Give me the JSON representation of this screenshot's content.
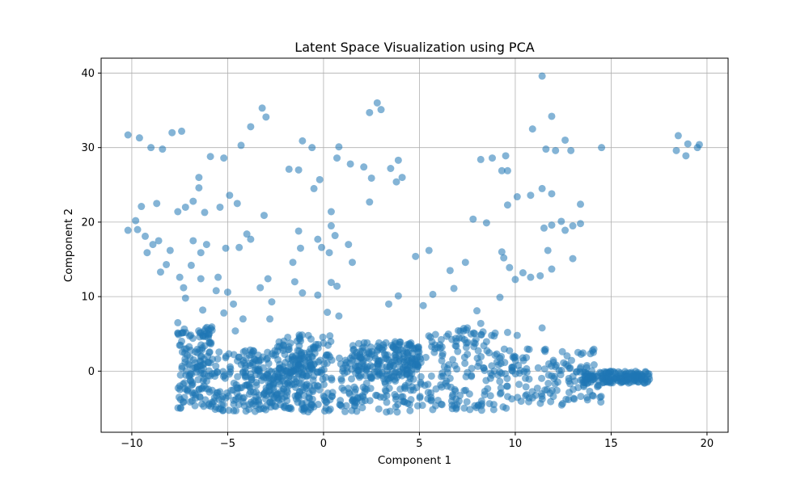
{
  "chart_data": {
    "type": "scatter",
    "title": "Latent Space Visualization using PCA",
    "xlabel": "Component 1",
    "ylabel": "Component 2",
    "xlim": [
      -11.6,
      21.1
    ],
    "ylim": [
      -8.2,
      42.0
    ],
    "xticks": [
      -10,
      -5,
      0,
      5,
      10,
      15,
      20
    ],
    "yticks": [
      0,
      10,
      20,
      30,
      40
    ],
    "grid": true,
    "legend": "none",
    "marker_color": "#1f77b4",
    "marker_alpha": 0.55,
    "series": [
      {
        "points": [
          [
            -10.2,
            31.7
          ],
          [
            -9.6,
            31.3
          ],
          [
            -9.0,
            30.0
          ],
          [
            -8.4,
            29.8
          ],
          [
            -7.9,
            32.0
          ],
          [
            -7.4,
            32.2
          ],
          [
            -5.2,
            28.6
          ],
          [
            -5.9,
            28.8
          ],
          [
            -3.8,
            32.8
          ],
          [
            -3.2,
            35.3
          ],
          [
            -3.0,
            34.1
          ],
          [
            2.8,
            36.0
          ],
          [
            3.0,
            35.1
          ],
          [
            2.4,
            34.7
          ],
          [
            11.4,
            39.6
          ],
          [
            11.9,
            34.2
          ],
          [
            10.9,
            32.5
          ],
          [
            11.6,
            29.8
          ],
          [
            12.1,
            29.6
          ],
          [
            12.9,
            29.6
          ],
          [
            14.5,
            30.0
          ],
          [
            12.6,
            31.0
          ],
          [
            18.5,
            31.6
          ],
          [
            18.4,
            29.6
          ],
          [
            19.0,
            30.5
          ],
          [
            19.5,
            30.0
          ],
          [
            18.9,
            28.9
          ],
          [
            19.6,
            30.4
          ],
          [
            -4.3,
            30.3
          ],
          [
            -1.1,
            30.9
          ],
          [
            -0.6,
            30.0
          ],
          [
            0.8,
            30.1
          ],
          [
            0.7,
            28.6
          ],
          [
            1.4,
            27.8
          ],
          [
            2.1,
            27.4
          ],
          [
            3.9,
            28.3
          ],
          [
            8.2,
            28.4
          ],
          [
            8.8,
            28.6
          ],
          [
            9.5,
            28.9
          ],
          [
            9.3,
            26.9
          ],
          [
            9.6,
            26.9
          ],
          [
            3.5,
            27.2
          ],
          [
            3.8,
            25.4
          ],
          [
            4.1,
            26.0
          ],
          [
            2.5,
            25.9
          ],
          [
            -1.8,
            27.1
          ],
          [
            -1.3,
            27.0
          ],
          [
            -0.2,
            25.7
          ],
          [
            -0.5,
            24.5
          ],
          [
            -6.5,
            26.0
          ],
          [
            -6.5,
            24.6
          ],
          [
            -7.2,
            22.0
          ],
          [
            -6.8,
            22.8
          ],
          [
            -7.6,
            21.4
          ],
          [
            -8.7,
            22.5
          ],
          [
            -9.5,
            22.1
          ],
          [
            -9.8,
            20.2
          ],
          [
            -10.2,
            18.9
          ],
          [
            -9.7,
            19.0
          ],
          [
            -9.3,
            18.1
          ],
          [
            -8.9,
            17.0
          ],
          [
            -8.6,
            17.5
          ],
          [
            -9.2,
            15.9
          ],
          [
            -8.0,
            16.2
          ],
          [
            -6.2,
            21.3
          ],
          [
            -6.8,
            17.5
          ],
          [
            -6.4,
            15.9
          ],
          [
            -6.1,
            17.0
          ],
          [
            -5.4,
            22.0
          ],
          [
            -4.9,
            23.6
          ],
          [
            -4.5,
            22.5
          ],
          [
            -4.0,
            18.4
          ],
          [
            -3.8,
            17.7
          ],
          [
            -4.4,
            16.6
          ],
          [
            -5.1,
            16.5
          ],
          [
            -3.1,
            20.9
          ],
          [
            -1.3,
            18.8
          ],
          [
            -1.2,
            16.5
          ],
          [
            -1.6,
            14.6
          ],
          [
            -0.3,
            17.7
          ],
          [
            0.4,
            19.5
          ],
          [
            0.4,
            21.4
          ],
          [
            0.6,
            18.2
          ],
          [
            -0.1,
            16.6
          ],
          [
            0.3,
            15.9
          ],
          [
            1.3,
            17.0
          ],
          [
            1.5,
            14.6
          ],
          [
            2.4,
            22.7
          ],
          [
            -8.5,
            13.3
          ],
          [
            -8.2,
            14.3
          ],
          [
            -7.5,
            12.6
          ],
          [
            -6.9,
            14.2
          ],
          [
            -6.4,
            12.4
          ],
          [
            -5.5,
            12.6
          ],
          [
            -5.6,
            10.8
          ],
          [
            -5.0,
            10.6
          ],
          [
            -3.3,
            11.2
          ],
          [
            -2.9,
            12.4
          ],
          [
            -2.7,
            9.3
          ],
          [
            -1.5,
            12.0
          ],
          [
            -1.1,
            10.5
          ],
          [
            -0.3,
            10.2
          ],
          [
            0.4,
            11.9
          ],
          [
            0.7,
            11.4
          ],
          [
            -7.3,
            11.2
          ],
          [
            -7.2,
            9.8
          ],
          [
            -6.3,
            8.2
          ],
          [
            -5.2,
            7.8
          ],
          [
            -4.7,
            9.0
          ],
          [
            -4.2,
            7.0
          ],
          [
            -7.6,
            6.5
          ],
          [
            -6.0,
            5.5
          ],
          [
            -4.6,
            5.4
          ],
          [
            -2.8,
            7.0
          ],
          [
            0.2,
            7.9
          ],
          [
            0.8,
            7.4
          ],
          [
            3.4,
            9.0
          ],
          [
            5.2,
            8.8
          ],
          [
            5.7,
            10.3
          ],
          [
            3.9,
            10.1
          ],
          [
            4.8,
            15.4
          ],
          [
            5.5,
            16.2
          ],
          [
            6.6,
            13.5
          ],
          [
            7.4,
            14.6
          ],
          [
            6.8,
            11.1
          ],
          [
            7.8,
            20.4
          ],
          [
            8.5,
            19.9
          ],
          [
            9.3,
            16.0
          ],
          [
            9.4,
            15.2
          ],
          [
            9.7,
            13.9
          ],
          [
            10.0,
            12.3
          ],
          [
            10.4,
            13.2
          ],
          [
            10.8,
            12.6
          ],
          [
            11.3,
            12.8
          ],
          [
            11.9,
            13.7
          ],
          [
            11.7,
            16.2
          ],
          [
            11.5,
            19.2
          ],
          [
            11.9,
            19.6
          ],
          [
            12.4,
            20.1
          ],
          [
            12.6,
            18.9
          ],
          [
            13.0,
            19.5
          ],
          [
            13.4,
            19.8
          ],
          [
            13.0,
            15.1
          ],
          [
            13.4,
            22.4
          ],
          [
            11.9,
            23.8
          ],
          [
            11.4,
            24.5
          ],
          [
            10.8,
            23.6
          ],
          [
            10.1,
            23.4
          ],
          [
            9.6,
            22.3
          ],
          [
            6.9,
            4.4
          ],
          [
            7.5,
            5.8
          ],
          [
            8.2,
            6.4
          ],
          [
            9.2,
            9.9
          ],
          [
            9.6,
            5.2
          ],
          [
            10.1,
            4.8
          ],
          [
            11.4,
            5.8
          ],
          [
            8.0,
            8.1
          ]
        ]
      }
    ]
  }
}
